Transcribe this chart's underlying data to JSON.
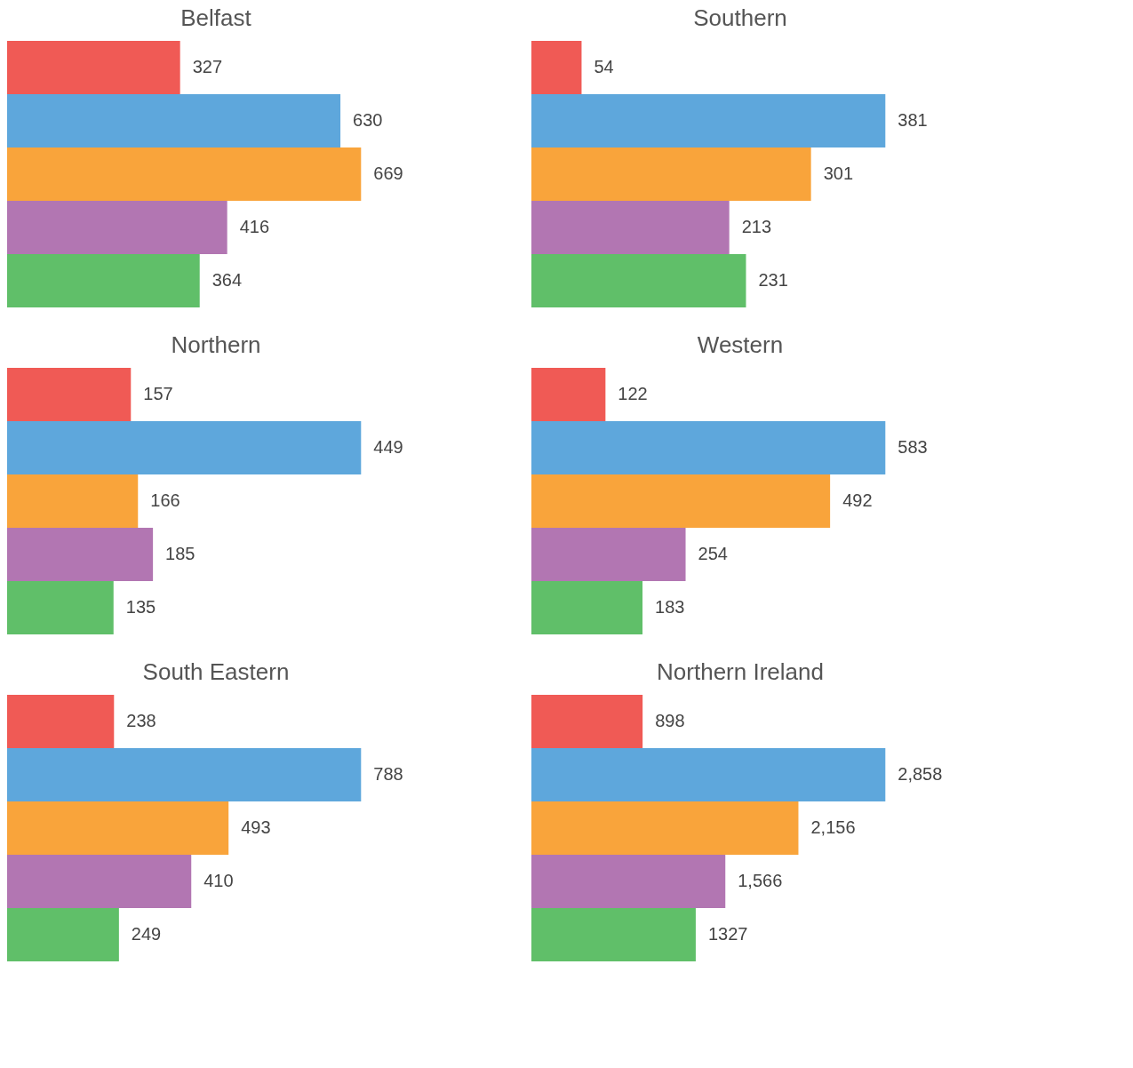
{
  "chart_data": [
    {
      "type": "bar",
      "orientation": "horizontal",
      "title": "Belfast",
      "categories": [
        null,
        null,
        null,
        null,
        null
      ],
      "values": [
        327,
        630,
        669,
        416,
        364
      ],
      "colors": [
        "#f05a55",
        "#5ea7dc",
        "#f9a43b",
        "#b276b2",
        "#60bf69"
      ],
      "data_labels": true
    },
    {
      "type": "bar",
      "orientation": "horizontal",
      "title": "Southern",
      "categories": [
        null,
        null,
        null,
        null,
        null
      ],
      "values": [
        54,
        381,
        301,
        213,
        231
      ],
      "colors": [
        "#f05a55",
        "#5ea7dc",
        "#f9a43b",
        "#b276b2",
        "#60bf69"
      ],
      "data_labels": true
    },
    {
      "type": "bar",
      "orientation": "horizontal",
      "title": "Northern",
      "categories": [
        null,
        null,
        null,
        null,
        null
      ],
      "values": [
        157,
        449,
        166,
        185,
        135
      ],
      "colors": [
        "#f05a55",
        "#5ea7dc",
        "#f9a43b",
        "#b276b2",
        "#60bf69"
      ],
      "data_labels": true
    },
    {
      "type": "bar",
      "orientation": "horizontal",
      "title": "Western",
      "categories": [
        null,
        null,
        null,
        null,
        null
      ],
      "values": [
        122,
        583,
        492,
        254,
        183
      ],
      "colors": [
        "#f05a55",
        "#5ea7dc",
        "#f9a43b",
        "#b276b2",
        "#60bf69"
      ],
      "data_labels": true
    },
    {
      "type": "bar",
      "orientation": "horizontal",
      "title": "South Eastern",
      "categories": [
        null,
        null,
        null,
        null,
        null
      ],
      "values": [
        238,
        788,
        493,
        410,
        249
      ],
      "colors": [
        "#f05a55",
        "#5ea7dc",
        "#f9a43b",
        "#b276b2",
        "#60bf69"
      ],
      "data_labels": true
    },
    {
      "type": "bar",
      "orientation": "horizontal",
      "title": "Northern Ireland",
      "categories": [
        null,
        null,
        null,
        null,
        null
      ],
      "values": [
        898,
        2858,
        2156,
        1566,
        1327
      ],
      "colors": [
        "#f05a55",
        "#5ea7dc",
        "#f9a43b",
        "#b276b2",
        "#60bf69"
      ],
      "value_labels": [
        "898",
        "2,858",
        "2,156",
        "1,566",
        "1327"
      ]
    }
  ]
}
